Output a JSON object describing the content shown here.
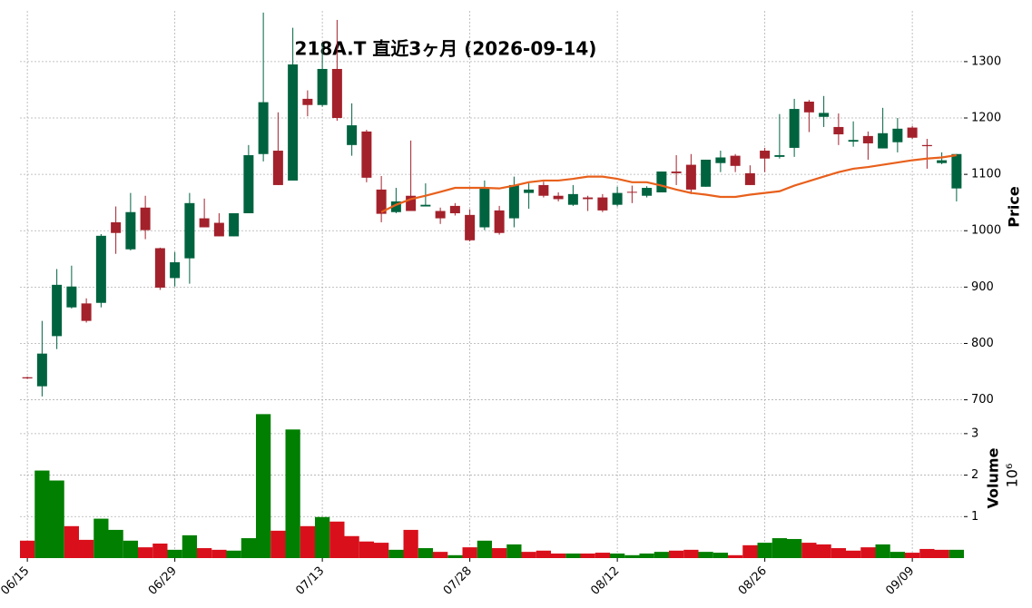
{
  "chart_data": {
    "type": "candlestick",
    "title": "218A.T 直近3ヶ月 (2026-09-14)",
    "categories": [
      "06/15",
      null,
      null,
      null,
      null,
      null,
      null,
      null,
      null,
      null,
      "06/29",
      null,
      null,
      null,
      null,
      null,
      null,
      null,
      null,
      null,
      "07/13",
      null,
      null,
      null,
      null,
      null,
      null,
      null,
      null,
      null,
      "07/28",
      null,
      null,
      null,
      null,
      null,
      null,
      null,
      null,
      null,
      "08/12",
      null,
      null,
      null,
      null,
      null,
      null,
      null,
      null,
      null,
      "08/26",
      null,
      null,
      null,
      null,
      null,
      null,
      null,
      null,
      null,
      "09/09",
      null,
      null,
      null
    ],
    "open": [
      740,
      724,
      813,
      864,
      871,
      872,
      1015,
      967,
      1041,
      969,
      916,
      951,
      1022,
      1014,
      990,
      1031,
      1136,
      1142,
      1089,
      1234,
      1223,
      1287,
      1152,
      1176,
      1073,
      1033,
      1062,
      1043,
      1035,
      1044,
      1028,
      1006,
      1036,
      1022,
      1067,
      1081,
      1062,
      1046,
      1059,
      1059,
      1046,
      1069,
      1062,
      1068,
      1105,
      1117,
      1078,
      1120,
      1133,
      1102,
      1142,
      1131,
      1147,
      1229,
      1202,
      1184,
      1158,
      1168,
      1146,
      1157,
      1183,
      1152,
      1120,
      1075
    ],
    "high": [
      741,
      840,
      932,
      938,
      880,
      994,
      1043,
      1067,
      1062,
      970,
      962,
      1067,
      1057,
      1031,
      1031,
      1152,
      1387,
      1210,
      1360,
      1249,
      1332,
      1374,
      1226,
      1179,
      1097,
      1076,
      1160,
      1084,
      1041,
      1049,
      1038,
      1089,
      1044,
      1096,
      1084,
      1087,
      1068,
      1081,
      1062,
      1065,
      1078,
      1080,
      1079,
      1105,
      1134,
      1136,
      1126,
      1142,
      1136,
      1116,
      1147,
      1207,
      1234,
      1232,
      1239,
      1208,
      1194,
      1176,
      1218,
      1200,
      1186,
      1163,
      1139,
      1136
    ],
    "low": [
      737,
      706,
      790,
      862,
      837,
      864,
      959,
      965,
      985,
      895,
      901,
      906,
      1006,
      990,
      990,
      1031,
      1123,
      1081,
      1089,
      1203,
      1220,
      1195,
      1133,
      1086,
      1015,
      1031,
      1035,
      1043,
      1012,
      1027,
      981,
      1001,
      993,
      1006,
      1039,
      1059,
      1052,
      1044,
      1035,
      1033,
      1043,
      1049,
      1059,
      1068,
      1081,
      1065,
      1078,
      1104,
      1104,
      1081,
      1104,
      1128,
      1131,
      1175,
      1184,
      1152,
      1149,
      1126,
      1146,
      1139,
      1163,
      1110,
      1118,
      1052
    ],
    "close": [
      738,
      782,
      904,
      901,
      840,
      991,
      996,
      1033,
      1001,
      899,
      944,
      1049,
      1006,
      990,
      1031,
      1134,
      1228,
      1081,
      1295,
      1223,
      1287,
      1200,
      1187,
      1094,
      1030,
      1052,
      1035,
      1046,
      1022,
      1031,
      983,
      1075,
      996,
      1081,
      1073,
      1062,
      1056,
      1065,
      1056,
      1036,
      1067,
      1068,
      1076,
      1105,
      1102,
      1073,
      1126,
      1130,
      1115,
      1081,
      1128,
      1134,
      1216,
      1210,
      1209,
      1171,
      1161,
      1155,
      1173,
      1181,
      1165,
      1150,
      1125,
      1136
    ],
    "up_color": "#006340",
    "down_color": "#a3212b",
    "ma": {
      "color": "#e8601c",
      "values": [
        null,
        null,
        null,
        null,
        null,
        null,
        null,
        null,
        null,
        null,
        null,
        null,
        null,
        null,
        null,
        null,
        null,
        null,
        null,
        null,
        null,
        null,
        null,
        null,
        1033,
        1046,
        1056,
        1062,
        1069,
        1076,
        1076,
        1076,
        1075,
        1080,
        1086,
        1089,
        1089,
        1092,
        1096,
        1096,
        1092,
        1086,
        1086,
        1080,
        1073,
        1067,
        1064,
        1060,
        1060,
        1064,
        1067,
        1070,
        1080,
        1088,
        1096,
        1104,
        1110,
        1113,
        1117,
        1121,
        1125,
        1128,
        1130,
        1134
      ]
    },
    "ylabel": "Price",
    "ylim": [
      680,
      1390
    ],
    "yticks": [
      700,
      800,
      900,
      1000,
      1100,
      1200,
      1300
    ],
    "grid": true,
    "volume": {
      "ylabel": "Volume",
      "scale_label": "10⁶",
      "up_color": "#007f00",
      "down_color": "#d9101b",
      "values": [
        0.42,
        2.11,
        1.87,
        0.77,
        0.44,
        0.95,
        0.68,
        0.42,
        0.26,
        0.35,
        0.2,
        0.55,
        0.24,
        0.2,
        0.18,
        0.48,
        3.47,
        0.66,
        3.1,
        0.77,
        0.99,
        0.88,
        0.53,
        0.4,
        0.37,
        0.2,
        0.68,
        0.24,
        0.15,
        0.07,
        0.26,
        0.42,
        0.24,
        0.33,
        0.15,
        0.18,
        0.11,
        0.11,
        0.11,
        0.13,
        0.11,
        0.07,
        0.11,
        0.15,
        0.18,
        0.2,
        0.15,
        0.13,
        0.07,
        0.31,
        0.37,
        0.48,
        0.46,
        0.37,
        0.33,
        0.24,
        0.18,
        0.26,
        0.33,
        0.15,
        0.13,
        0.22,
        0.2,
        0.2
      ],
      "ylim": [
        0,
        3.5
      ],
      "yticks": [
        1,
        2,
        3
      ]
    }
  }
}
